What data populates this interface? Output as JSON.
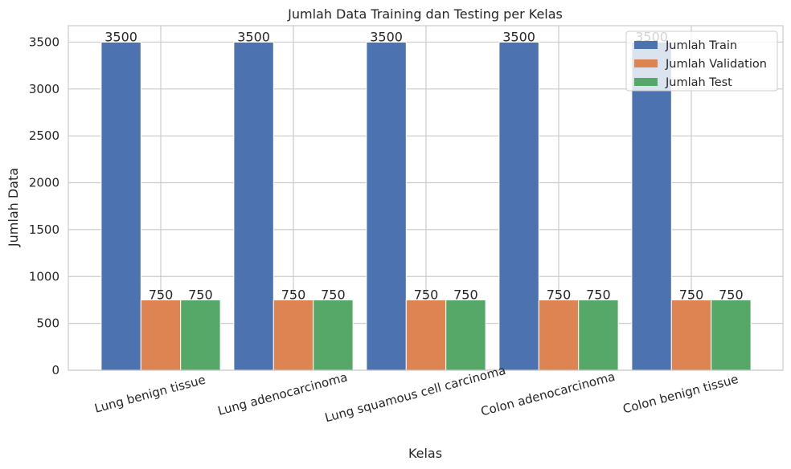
{
  "chart_data": {
    "type": "bar",
    "title": "Jumlah Data Training dan Testing per Kelas",
    "xlabel": "Kelas",
    "ylabel": "Jumlah Data",
    "categories": [
      "Lung benign tissue",
      "Lung adenocarcinoma",
      "Lung squamous cell carcinoma",
      "Colon adenocarcinoma",
      "Colon benign tissue"
    ],
    "series": [
      {
        "name": "Jumlah Train",
        "values": [
          3500,
          3500,
          3500,
          3500,
          3500
        ],
        "color": "#4c72b0"
      },
      {
        "name": "Jumlah Validation",
        "values": [
          750,
          750,
          750,
          750,
          750
        ],
        "color": "#dd8452"
      },
      {
        "name": "Jumlah Test",
        "values": [
          750,
          750,
          750,
          750,
          750
        ],
        "color": "#55a868"
      }
    ],
    "ylim": [
      0,
      3675
    ],
    "yticks": [
      0,
      500,
      1000,
      1500,
      2000,
      2500,
      3000,
      3500
    ],
    "grid": true,
    "legend_position": "top-right",
    "xtick_rotation": "-15deg"
  }
}
